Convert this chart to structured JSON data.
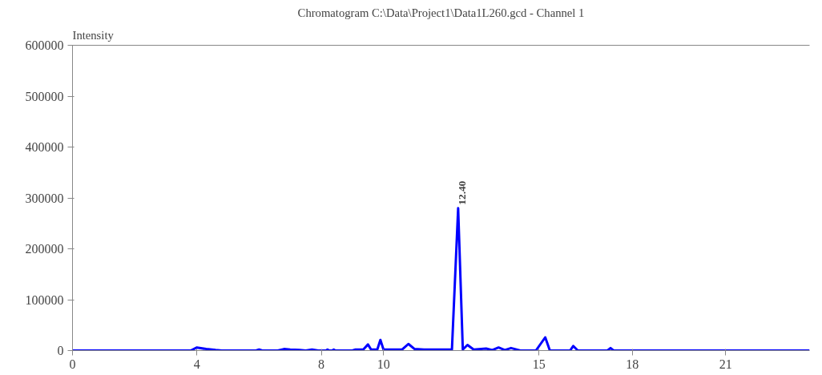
{
  "chart_data": {
    "type": "line",
    "title": "Chromatogram C:\\Data\\Project1\\Data1L260.gcd - Channel 1",
    "ylabel": "Intensity",
    "x": [
      0,
      3.8,
      4.0,
      4.3,
      4.6,
      4.8,
      5.9,
      6.0,
      6.1,
      6.6,
      6.8,
      7.0,
      7.3,
      7.5,
      7.7,
      7.9,
      8.15,
      8.2,
      8.25,
      8.35,
      8.4,
      8.45,
      9.0,
      9.1,
      9.35,
      9.5,
      9.6,
      9.8,
      9.9,
      10.0,
      10.6,
      10.8,
      11.0,
      11.3,
      12.2,
      12.4,
      12.55,
      12.7,
      12.9,
      13.3,
      13.5,
      13.7,
      13.9,
      14.1,
      14.4,
      14.9,
      15.2,
      15.35,
      16.0,
      16.1,
      16.25,
      17.2,
      17.3,
      17.4,
      23.7
    ],
    "series": [
      {
        "color": "#0000ff",
        "values": [
          0,
          0,
          6000,
          3000,
          1000,
          0,
          0,
          2000,
          0,
          0,
          3000,
          2000,
          1000,
          0,
          2000,
          0,
          0,
          2000,
          0,
          0,
          2000,
          0,
          0,
          2000,
          2000,
          12000,
          2000,
          2000,
          21000,
          2000,
          2000,
          13000,
          3000,
          2000,
          2000,
          280000,
          2000,
          11000,
          2000,
          4000,
          1000,
          6000,
          1000,
          5000,
          0,
          0,
          26000,
          0,
          0,
          9000,
          0,
          0,
          5000,
          0,
          0
        ]
      }
    ],
    "annotations": [
      {
        "text": "12.40",
        "x": 12.4,
        "y": 280000
      }
    ],
    "xlim": [
      0,
      23.7
    ],
    "xticks": [
      0,
      4,
      8,
      10,
      15,
      18,
      21
    ],
    "ylim": [
      0,
      600000
    ],
    "yticks": [
      0,
      100000,
      200000,
      300000,
      400000,
      500000,
      600000
    ],
    "grid": false,
    "marker": "none",
    "line_style": "solid"
  }
}
